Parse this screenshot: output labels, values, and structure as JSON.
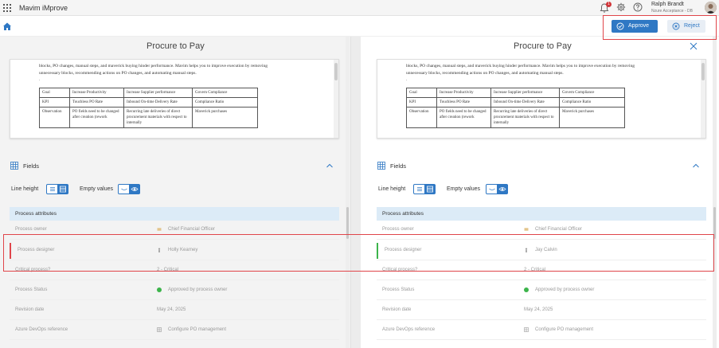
{
  "app": {
    "title": "Mavim iMprove"
  },
  "header": {
    "notification_count": "1",
    "user_name": "Ralph Brandt",
    "user_subtitle": "Nzure Acceptance - DB"
  },
  "actions": {
    "approve_label": "Approve",
    "reject_label": "Reject"
  },
  "colors": {
    "accent": "#2f78c4",
    "highlight_box": "#e0454a",
    "removed_bar": "#e0454a",
    "added_bar": "#3cb44b",
    "section_bg": "#dcebf7"
  },
  "left_panel": {
    "title": "Procure to Pay",
    "doc": {
      "text_line1": "blocks, PO changes, manual steps, and maverick buying hinder performance. Mavim helps you to improve execution by removing",
      "text_line2": "unnecessary blocks, recommending actions on PO changes, and automating manual steps.",
      "dot": ".",
      "table": [
        [
          "Goal",
          "Increase Productivity",
          "Increase Supplier performance",
          "Govern Compliance"
        ],
        [
          "KPI",
          "Touchless PO Rate",
          "Inbound On-time Delivery Rate",
          "Compliance Ratio"
        ],
        [
          "Observation",
          "PO fields need to be changed after creation (rework",
          "Recurring late deliveries of direct procurement materials with respect to internally",
          "Maverick purchases"
        ]
      ]
    },
    "fields_label": "Fields",
    "line_height_label": "Line height",
    "empty_values_label": "Empty values",
    "section_title": "Process attributes",
    "rows": [
      {
        "label": "Process owner",
        "value": "Chief Financial Officer",
        "icon": "role-icon"
      },
      {
        "label": "Process designer",
        "value": "Holly Kearney",
        "icon": "person-icon"
      },
      {
        "label": "Critical process?",
        "value": "2 - Critical",
        "icon": ""
      },
      {
        "label": "Process Status",
        "value": "Approved by process owner",
        "icon": "status-dot-icon"
      },
      {
        "label": "Revision date",
        "value": "May 24, 2025",
        "icon": ""
      },
      {
        "label": "Azure DevOps reference",
        "value": "Configure PO management",
        "icon": "grid-icon"
      }
    ]
  },
  "right_panel": {
    "title": "Procure to Pay",
    "doc": {
      "text_line1": "blocks, PO changes, manual steps, and maverick buying hinder performance. Mavim helps you to improve execution by removing",
      "text_line2": "unnecessary blocks, recommending actions on PO changes, and automating manual steps.",
      "dot": ".",
      "table": [
        [
          "Goal",
          "Increase Productivity",
          "Increase Supplier performance",
          "Govern Compliance"
        ],
        [
          "KPI",
          "Touchless PO Rate",
          "Inbound On-time Delivery Rate",
          "Compliance Ratio"
        ],
        [
          "Observation",
          "PO fields need to be changed after creation (rework",
          "Recurring late deliveries of direct procurement materials with respect to internally",
          "Maverick purchases"
        ]
      ]
    },
    "fields_label": "Fields",
    "line_height_label": "Line height",
    "empty_values_label": "Empty values",
    "section_title": "Process attributes",
    "rows": [
      {
        "label": "Process owner",
        "value": "Chief Financial Officer",
        "icon": "role-icon"
      },
      {
        "label": "Process designer",
        "value": "Jay Calvin",
        "icon": "person-icon"
      },
      {
        "label": "Critical process?",
        "value": "2 - Critical",
        "icon": ""
      },
      {
        "label": "Process Status",
        "value": "Approved by process owner",
        "icon": "status-dot-icon"
      },
      {
        "label": "Revision date",
        "value": "May 24, 2025",
        "icon": ""
      },
      {
        "label": "Azure DevOps reference",
        "value": "Configure PO management",
        "icon": "grid-icon"
      }
    ]
  }
}
